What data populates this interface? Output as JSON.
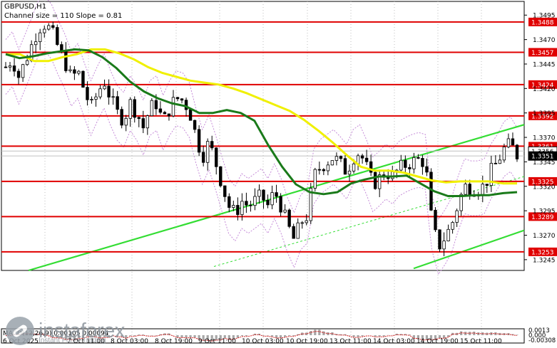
{
  "header": {
    "symbol": "GBPUSD,H1",
    "channel_label": "Channel size = 110 Slope = 0.81"
  },
  "macd": {
    "label": "MACD(12,26,9) 0.00105 0.00094"
  },
  "logo": {
    "name": "instaforex",
    "tagline": "Instant Forex Trading"
  },
  "colors": {
    "background": "#ffffff",
    "candle": "#000000",
    "level_line": "#e00000",
    "level_tag": "#e00000",
    "ma_fast": "#f0f000",
    "ma_slow": "#1a7a1a",
    "channel": "#33dd33",
    "bollinger": "#c58bd8",
    "macd_hist": "#a7a7a7",
    "macd_signal": "#d02020"
  },
  "chart_data": {
    "type": "candlestick",
    "symbol": "GBPUSD",
    "timeframe": "H1",
    "ylim": [
      1.3234,
      1.3509
    ],
    "y_ticks": [
      1.3495,
      1.347,
      1.3445,
      1.342,
      1.3395,
      1.337,
      1.3345,
      1.332,
      1.3295,
      1.327,
      1.3245
    ],
    "x_labels": [
      "6 Oct 2025",
      "7 Oct 11:00",
      "8 Oct 03:00",
      "8 Oct 19:00",
      "9 Oct 11:00",
      "10 Oct 03:00",
      "10 Oct 19:00",
      "13 Oct 11:00",
      "14 Oct 03:00",
      "14 Oct 19:00",
      "15 Oct 11:00"
    ],
    "levels": [
      1.3488,
      1.3457,
      1.3424,
      1.3392,
      1.3361,
      1.3325,
      1.3289,
      1.3253
    ],
    "last_price": 1.3351,
    "current_price_tags": [
      1.3356,
      1.3351
    ],
    "price_path": [
      1.3442,
      1.345,
      1.3432,
      1.3448,
      1.3465,
      1.3482,
      1.3486,
      1.3478,
      1.3462,
      1.3448,
      1.343,
      1.3438,
      1.3418,
      1.34,
      1.3415,
      1.3428,
      1.341,
      1.3395,
      1.3388,
      1.3405,
      1.3395,
      1.338,
      1.34,
      1.3405,
      1.3385,
      1.34,
      1.341,
      1.3408,
      1.3398,
      1.3372,
      1.335,
      1.3365,
      1.3345,
      1.3322,
      1.33,
      1.3292,
      1.3305,
      1.33,
      1.3305,
      1.331,
      1.33,
      1.3315,
      1.33,
      1.328,
      1.3265,
      1.3283,
      1.329,
      1.333,
      1.334,
      1.3345,
      1.335,
      1.3343,
      1.3335,
      1.335,
      1.3355,
      1.334,
      1.3322,
      1.3328,
      1.3335,
      1.333,
      1.3338,
      1.3342,
      1.3345,
      1.3347,
      1.3345,
      1.3283,
      1.3258,
      1.3268,
      1.328,
      1.3302,
      1.332,
      1.3318,
      1.3318,
      1.332,
      1.3335,
      1.3345,
      1.3358,
      1.3363,
      1.3352
    ],
    "ma_yellow": [
      1.3455,
      1.3455,
      1.3448,
      1.3448,
      1.3452,
      1.3455,
      1.346,
      1.346,
      1.3456,
      1.345,
      1.3442,
      1.3436,
      1.3432,
      1.3428,
      1.3426,
      1.3424,
      1.342,
      1.3415,
      1.3409,
      1.3403,
      1.3397,
      1.3388,
      1.3377,
      1.3365,
      1.3352,
      1.334,
      1.3336,
      1.3336,
      1.3334,
      1.333,
      1.3326,
      1.3324,
      1.3325,
      1.3325,
      1.3325,
      1.3323,
      1.3323
    ],
    "ma_green": [
      1.3455,
      1.3451,
      1.3453,
      1.3456,
      1.3458,
      1.346,
      1.3459,
      1.3452,
      1.3441,
      1.3427,
      1.3417,
      1.341,
      1.3405,
      1.3402,
      1.3395,
      1.3395,
      1.3398,
      1.3395,
      1.3387,
      1.3362,
      1.334,
      1.3322,
      1.3314,
      1.3312,
      1.3314,
      1.3323,
      1.3327,
      1.333,
      1.333,
      1.3331,
      1.3323,
      1.3315,
      1.331,
      1.331,
      1.3311,
      1.3311,
      1.3313,
      1.3314
    ]
  }
}
